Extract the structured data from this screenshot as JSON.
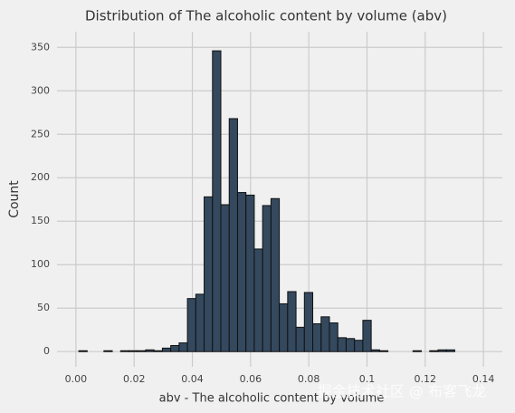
{
  "chart_data": {
    "type": "histogram",
    "title": "Distribution of The alcoholic content by volume (abv)",
    "x_label": "abv - The alcoholic content by volume",
    "y_label": "Count",
    "watermark": "掘金技术社区 @ 布客飞龙",
    "bins": [
      0.001,
      0.00387,
      0.00674,
      0.00961,
      0.01248,
      0.01535,
      0.01822,
      0.02109,
      0.02396,
      0.02683,
      0.0297,
      0.03257,
      0.03544,
      0.03831,
      0.04118,
      0.04405,
      0.04692,
      0.04979,
      0.05266,
      0.05553,
      0.0584,
      0.06127,
      0.06414,
      0.06701,
      0.06988,
      0.07275,
      0.07562,
      0.07849,
      0.08136,
      0.08423,
      0.0871,
      0.08997,
      0.09284,
      0.09571,
      0.09858,
      0.10145,
      0.10432,
      0.10719,
      0.11006,
      0.11293,
      0.1158,
      0.11867,
      0.12154,
      0.12441,
      0.12728,
      0.13015
    ],
    "values": [
      1,
      0,
      0,
      1,
      0,
      1,
      1,
      1,
      2,
      1,
      4,
      7,
      10,
      61,
      66,
      178,
      346,
      169,
      268,
      183,
      180,
      118,
      168,
      176,
      55,
      69,
      28,
      68,
      32,
      40,
      33,
      16,
      15,
      13,
      36,
      2,
      1,
      0,
      0,
      0,
      1,
      0,
      1,
      2,
      2
    ],
    "color": "#34495e",
    "edge_color": "#111111",
    "xlim": [
      -0.0065,
      0.1465
    ],
    "ylim": [
      -17.5,
      368
    ],
    "xticks": [
      {
        "value": 0,
        "label": "0.00"
      },
      0.02,
      0.04,
      0.06,
      0.08,
      0.1,
      0.12,
      0.14
    ],
    "yticks": [
      0,
      50,
      100,
      150,
      200,
      250,
      300,
      350
    ],
    "grid": true
  }
}
